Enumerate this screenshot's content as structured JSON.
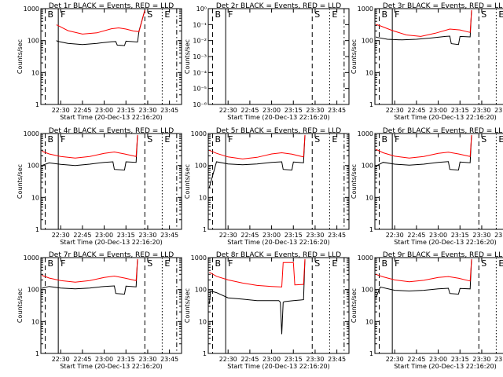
{
  "chart_data": [
    {
      "type": "line",
      "title": "Det 1r BLACK = Events, RED = LLD",
      "xlabel": "Start Time (20-Dec-13 22:16:20)",
      "ylabel": "Counts/sec",
      "x_tick_labels": [
        "22:30",
        "22:45",
        "23:00",
        "23:15",
        "23:30",
        "23:45"
      ],
      "y_tick_labels": [
        "1",
        "10",
        "100",
        "1000"
      ],
      "ylim": [
        1,
        1000
      ],
      "y_scale": "log",
      "marker_labels": [
        "B",
        "F",
        "S",
        "E"
      ],
      "series": [
        {
          "name": "Events",
          "color": "#000000",
          "x": [
            "22:27",
            "22:28",
            "22:35",
            "22:45",
            "22:55",
            "23:05",
            "23:08",
            "23:09",
            "23:14",
            "23:15",
            "23:23",
            "23:24",
            "23:28"
          ],
          "values": [
            100,
            95,
            82,
            75,
            82,
            92,
            93,
            72,
            70,
            96,
            90,
            200,
            900
          ]
        },
        {
          "name": "LLD",
          "color": "#ff0000",
          "x": [
            "22:27",
            "22:28",
            "22:35",
            "22:45",
            "22:55",
            "23:05",
            "23:10",
            "23:15",
            "23:20",
            "23:24",
            "23:28"
          ],
          "values": [
            310,
            300,
            205,
            160,
            175,
            235,
            250,
            230,
            200,
            190,
            900
          ]
        }
      ]
    },
    {
      "type": "line",
      "title": "Det 2r BLACK = Events, RED = LLD",
      "xlabel": "Start Time (20-Dec-13 22:16:20)",
      "ylabel": "Counts/sec",
      "x_tick_labels": [
        "22:30",
        "22:45",
        "23:00",
        "23:15",
        "23:30",
        "23:45"
      ],
      "y_tick_labels": [
        "10⁻⁶",
        "10⁻⁵",
        "10⁻⁴",
        "10⁻³",
        "10⁻²",
        "10⁻¹",
        "10⁰"
      ],
      "ylim": [
        1e-06,
        1
      ],
      "y_scale": "log",
      "marker_labels": [
        "B",
        "F",
        "S",
        "E"
      ],
      "series": []
    },
    {
      "type": "line",
      "title": "Det 3r BLACK = Events, RED = LLD",
      "xlabel": "Start Time (20-Dec-13 22:16:20)",
      "ylabel": "Counts/sec",
      "x_tick_labels": [
        "22:30",
        "22:45",
        "23:00",
        "23:15",
        "23:30",
        "23:45"
      ],
      "y_tick_labels": [
        "1",
        "10",
        "100",
        "1000"
      ],
      "ylim": [
        1,
        1000
      ],
      "y_scale": "log",
      "marker_labels": [
        "B",
        "F",
        "S",
        "E"
      ],
      "series": [
        {
          "name": "Events",
          "color": "#000000",
          "x": [
            "22:17",
            "22:18",
            "22:25",
            "22:35",
            "22:45",
            "22:55",
            "23:05",
            "23:08",
            "23:09",
            "23:14",
            "23:15",
            "23:22",
            "23:23"
          ],
          "values": [
            130,
            125,
            110,
            105,
            110,
            120,
            135,
            138,
            80,
            75,
            135,
            130,
            900
          ]
        },
        {
          "name": "LLD",
          "color": "#ff0000",
          "x": [
            "22:17",
            "22:20",
            "22:28",
            "22:38",
            "22:48",
            "22:58",
            "23:08",
            "23:15",
            "23:22",
            "23:23"
          ],
          "values": [
            320,
            290,
            210,
            150,
            135,
            170,
            230,
            215,
            180,
            900
          ]
        }
      ]
    },
    {
      "type": "line",
      "title": "Det 4r BLACK = Events, RED = LLD",
      "xlabel": "Start Time (20-Dec-13 22:16:20)",
      "ylabel": "Counts/sec",
      "x_tick_labels": [
        "22:30",
        "22:45",
        "23:00",
        "23:15",
        "23:30",
        "23:45"
      ],
      "y_tick_labels": [
        "1",
        "10",
        "100",
        "1000"
      ],
      "ylim": [
        1,
        1000
      ],
      "y_scale": "log",
      "marker_labels": [
        "B",
        "F",
        "S",
        "E"
      ],
      "series": [
        {
          "name": "Events",
          "color": "#000000",
          "x": [
            "22:17",
            "22:22",
            "22:30",
            "22:40",
            "22:50",
            "23:00",
            "23:06",
            "23:07",
            "23:14",
            "23:15",
            "23:22",
            "23:23"
          ],
          "values": [
            100,
            120,
            108,
            100,
            110,
            125,
            130,
            75,
            72,
            130,
            125,
            900
          ]
        },
        {
          "name": "LLD",
          "color": "#ff0000",
          "x": [
            "22:17",
            "22:22",
            "22:30",
            "22:40",
            "22:50",
            "23:00",
            "23:07",
            "23:14",
            "23:22",
            "23:23"
          ],
          "values": [
            280,
            230,
            190,
            170,
            190,
            240,
            265,
            230,
            190,
            900
          ]
        }
      ]
    },
    {
      "type": "line",
      "title": "Det 5r BLACK = Events, RED = LLD",
      "xlabel": "Start Time (20-Dec-13 22:16:20)",
      "ylabel": "Counts/sec",
      "x_tick_labels": [
        "22:30",
        "22:45",
        "23:00",
        "23:15",
        "23:30",
        "23:45"
      ],
      "y_tick_labels": [
        "1",
        "10",
        "100",
        "1000"
      ],
      "ylim": [
        1,
        1000
      ],
      "y_scale": "log",
      "marker_labels": [
        "B",
        "F",
        "S",
        "E"
      ],
      "series": [
        {
          "name": "Events",
          "color": "#000000",
          "x": [
            "22:17",
            "22:22",
            "22:30",
            "22:40",
            "22:50",
            "23:00",
            "23:07",
            "23:08",
            "23:14",
            "23:15",
            "23:22",
            "23:23"
          ],
          "values": [
            20,
            130,
            112,
            105,
            112,
            125,
            130,
            75,
            72,
            128,
            122,
            900
          ]
        },
        {
          "name": "LLD",
          "color": "#ff0000",
          "x": [
            "22:17",
            "22:22",
            "22:30",
            "22:40",
            "22:50",
            "23:00",
            "23:07",
            "23:14",
            "23:22",
            "23:23"
          ],
          "values": [
            300,
            240,
            185,
            160,
            180,
            230,
            250,
            225,
            185,
            900
          ]
        }
      ]
    },
    {
      "type": "line",
      "title": "Det 6r BLACK = Events, RED = LLD",
      "xlabel": "Start Time (20-Dec-13 22:16:20)",
      "ylabel": "Counts/sec",
      "x_tick_labels": [
        "22:30",
        "22:45",
        "23:00",
        "23:15",
        "23:30",
        "23:45"
      ],
      "y_tick_labels": [
        "1",
        "10",
        "100",
        "1000"
      ],
      "ylim": [
        1,
        1000
      ],
      "y_scale": "log",
      "marker_labels": [
        "B",
        "F",
        "S",
        "E"
      ],
      "series": [
        {
          "name": "Events",
          "color": "#000000",
          "x": [
            "22:17",
            "22:22",
            "22:30",
            "22:40",
            "22:50",
            "23:00",
            "23:07",
            "23:08",
            "23:14",
            "23:15",
            "23:22",
            "23:23"
          ],
          "values": [
            95,
            125,
            110,
            102,
            110,
            125,
            132,
            75,
            72,
            128,
            122,
            900
          ]
        },
        {
          "name": "LLD",
          "color": "#ff0000",
          "x": [
            "22:17",
            "22:22",
            "22:30",
            "22:40",
            "22:50",
            "23:00",
            "23:07",
            "23:14",
            "23:22",
            "23:23"
          ],
          "values": [
            320,
            250,
            195,
            170,
            190,
            240,
            260,
            230,
            190,
            900
          ]
        }
      ]
    },
    {
      "type": "line",
      "title": "Det 7r BLACK = Events, RED = LLD",
      "xlabel": "Start Time (20-Dec-13 22:16:20)",
      "ylabel": "Counts/sec",
      "x_tick_labels": [
        "22:30",
        "22:45",
        "23:00",
        "23:15",
        "23:30",
        "23:45"
      ],
      "y_tick_labels": [
        "1",
        "10",
        "100",
        "1000"
      ],
      "ylim": [
        1,
        1000
      ],
      "y_scale": "log",
      "marker_labels": [
        "B",
        "F",
        "S",
        "E"
      ],
      "series": [
        {
          "name": "Events",
          "color": "#000000",
          "x": [
            "22:17",
            "22:22",
            "22:30",
            "22:40",
            "22:50",
            "23:00",
            "23:07",
            "23:08",
            "23:14",
            "23:15",
            "23:22",
            "23:23"
          ],
          "values": [
            110,
            125,
            112,
            105,
            112,
            125,
            130,
            75,
            72,
            128,
            122,
            900
          ]
        },
        {
          "name": "LLD",
          "color": "#ff0000",
          "x": [
            "22:17",
            "22:22",
            "22:30",
            "22:40",
            "22:50",
            "23:00",
            "23:07",
            "23:14",
            "23:22",
            "23:23"
          ],
          "values": [
            280,
            230,
            190,
            170,
            190,
            240,
            265,
            230,
            190,
            900
          ]
        }
      ]
    },
    {
      "type": "line",
      "title": "Det 8r BLACK = Events, RED = LLD",
      "xlabel": "Start Time (20-Dec-13 22:16:20)",
      "ylabel": "Counts/sec",
      "x_tick_labels": [
        "22:30",
        "22:45",
        "23:00",
        "23:15",
        "23:30",
        "23:45"
      ],
      "y_tick_labels": [
        "1",
        "10",
        "100",
        "1000"
      ],
      "ylim": [
        1,
        1000
      ],
      "y_scale": "log",
      "marker_labels": [
        "B",
        "F",
        "S",
        "E"
      ],
      "series": [
        {
          "name": "Events",
          "color": "#000000",
          "x": [
            "22:17",
            "22:18",
            "22:22",
            "22:30",
            "22:40",
            "22:50",
            "23:00",
            "23:05",
            "23:06",
            "23:07",
            "23:08",
            "23:09",
            "23:15",
            "23:22",
            "23:23"
          ],
          "values": [
            35,
            90,
            80,
            55,
            50,
            45,
            45,
            45,
            40,
            4,
            40,
            42,
            45,
            48,
            900
          ]
        },
        {
          "name": "LLD",
          "color": "#ff0000",
          "x": [
            "22:17",
            "22:22",
            "22:30",
            "22:40",
            "22:50",
            "23:00",
            "23:07",
            "23:08",
            "23:15",
            "23:16",
            "23:22",
            "23:23"
          ],
          "values": [
            350,
            260,
            200,
            160,
            135,
            125,
            120,
            700,
            700,
            140,
            145,
            900
          ]
        }
      ]
    },
    {
      "type": "line",
      "title": "Det 9r BLACK = Events, RED = LLD",
      "xlabel": "Start Time (20-Dec-13 22:16:20)",
      "ylabel": "Counts/sec",
      "x_tick_labels": [
        "22:30",
        "22:45",
        "23:00",
        "23:15",
        "23:30",
        "23:45"
      ],
      "y_tick_labels": [
        "1",
        "10",
        "100",
        "1000"
      ],
      "ylim": [
        1,
        1000
      ],
      "y_scale": "log",
      "marker_labels": [
        "B",
        "F",
        "S",
        "E"
      ],
      "series": [
        {
          "name": "Events",
          "color": "#000000",
          "x": [
            "22:17",
            "22:20",
            "22:30",
            "22:40",
            "22:50",
            "23:00",
            "23:07",
            "23:08",
            "23:14",
            "23:15",
            "23:22",
            "23:23"
          ],
          "values": [
            55,
            120,
            95,
            90,
            95,
            105,
            110,
            75,
            72,
            108,
            105,
            900
          ]
        },
        {
          "name": "LLD",
          "color": "#ff0000",
          "x": [
            "22:17",
            "22:22",
            "22:30",
            "22:40",
            "22:50",
            "23:00",
            "23:07",
            "23:14",
            "23:22",
            "23:23"
          ],
          "values": [
            300,
            250,
            200,
            175,
            195,
            240,
            255,
            225,
            185,
            900
          ]
        }
      ]
    }
  ]
}
